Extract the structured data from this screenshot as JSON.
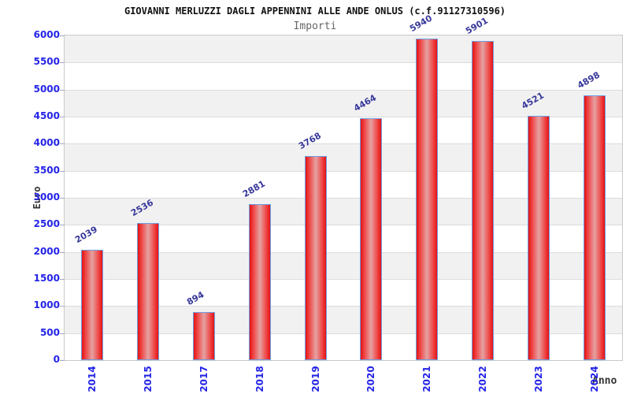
{
  "chart_data": {
    "type": "bar",
    "title": "GIOVANNI MERLUZZI DAGLI APPENNINI ALLE ANDE ONLUS (c.f.91127310596)",
    "subtitle": "Importi",
    "xlabel": "Anno",
    "ylabel": "Euro",
    "categories": [
      "2014",
      "2015",
      "2017",
      "2018",
      "2019",
      "2020",
      "2021",
      "2022",
      "2023",
      "2024"
    ],
    "values": [
      2039,
      2536,
      894,
      2881,
      3768,
      4464,
      5940,
      5901,
      4521,
      4898
    ],
    "ylim": [
      0,
      6000
    ],
    "ytick_step": 500,
    "yticks": [
      0,
      500,
      1000,
      1500,
      2000,
      2500,
      3000,
      3500,
      4000,
      4500,
      5000,
      5500,
      6000
    ],
    "grid": true,
    "legend": "none",
    "colors": {
      "band_odd": "#f1f1f1",
      "band_even": "#ffffff",
      "gridline": "#dcdcdc",
      "frame": "#c9c9c9",
      "bar_edge": "#e51212",
      "bar_center": "#e5a2a2",
      "bar_border": "#6b9fe4",
      "tick_label": "#2424e8",
      "value_label": "#38389b",
      "title": "#111111",
      "subtitle": "#666666",
      "axis_title": "#333333"
    }
  }
}
